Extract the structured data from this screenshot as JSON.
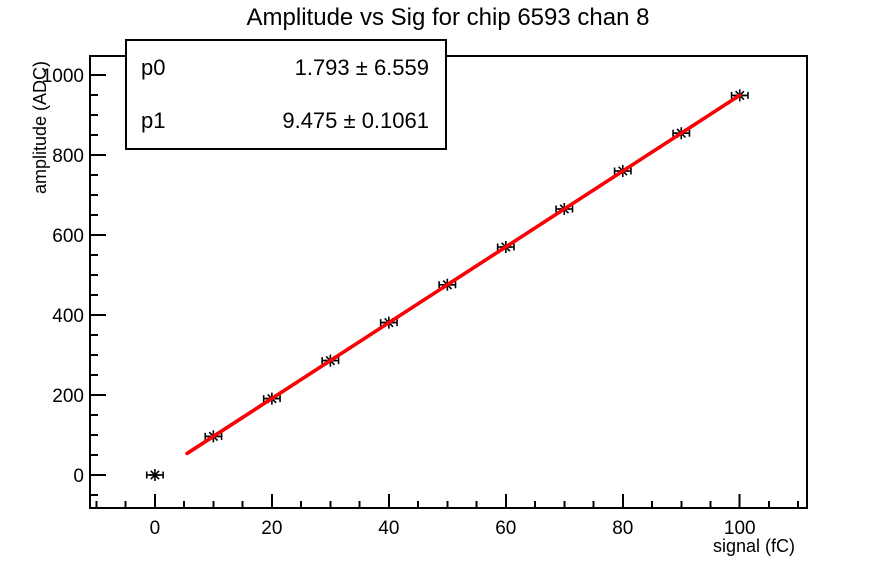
{
  "title": "Amplitude vs Sig for chip 6593 chan 8",
  "stats_box": {
    "rows": [
      {
        "label": "p0",
        "value": "1.793 ± 6.559"
      },
      {
        "label": "p1",
        "value": "9.475 ± 0.1061"
      }
    ]
  },
  "chart_data": {
    "type": "scatter",
    "title": "Amplitude vs Sig for chip 6593 chan 8",
    "xlabel": "signal (fC)",
    "ylabel": "amplitude (ADC)",
    "x": [
      0,
      10,
      20,
      30,
      40,
      50,
      60,
      70,
      80,
      90,
      100
    ],
    "y": [
      0,
      96.5,
      191,
      286,
      381,
      475.5,
      570,
      665,
      760,
      854.5,
      949
    ],
    "x_error": 1.4,
    "xlim": [
      -11.1,
      111.5
    ],
    "ylim": [
      -82.5,
      1047.5
    ],
    "x_major_ticks": [
      0,
      20,
      40,
      60,
      80,
      100
    ],
    "x_minor_step": 5,
    "y_major_ticks": [
      0,
      200,
      400,
      600,
      800,
      1000
    ],
    "y_minor_step": 50,
    "grid": false,
    "legend": "none",
    "fit": {
      "name": "linear",
      "p0": 1.793,
      "p0_err": 6.559,
      "p1": 9.475,
      "p1_err": 0.1061,
      "range": [
        5.5,
        100
      ]
    },
    "marker_style": "asterisk-with-x-error-bars",
    "colors": {
      "marker": "#000000",
      "fit_line": "#fb0006",
      "frame": "#000000",
      "background": "#ffffff"
    }
  }
}
